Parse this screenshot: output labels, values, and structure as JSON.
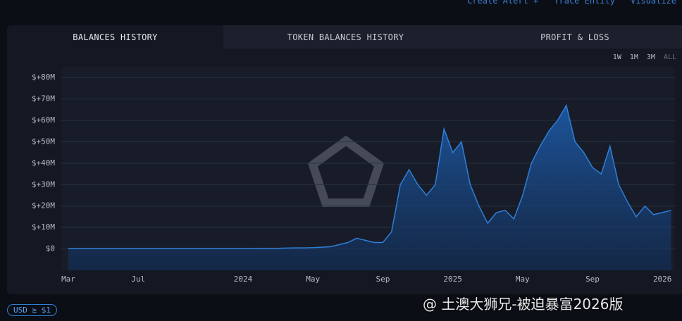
{
  "top_actions": [
    "Create Alert +",
    "Trace Entity",
    "Visualize"
  ],
  "tabs": [
    "BALANCES HISTORY",
    "TOKEN BALANCES HISTORY",
    "PROFIT & LOSS"
  ],
  "ranges": [
    "1W",
    "1M",
    "3M",
    "ALL"
  ],
  "filter": "USD ≥ $1",
  "watermark": "@ 土澳大狮兄-被迫暴富2026版",
  "chart_data": {
    "type": "area",
    "color": "#2f7fd8",
    "grid": true,
    "categories": [
      "Mar",
      null,
      null,
      null,
      null,
      null,
      null,
      null,
      "Jul",
      null,
      null,
      null,
      null,
      null,
      null,
      null,
      null,
      null,
      null,
      null,
      "2024",
      null,
      null,
      null,
      null,
      null,
      null,
      null,
      "May",
      null,
      null,
      null,
      null,
      null,
      null,
      null,
      "Sep",
      null,
      null,
      null,
      null,
      null,
      null,
      null,
      "2025",
      null,
      null,
      null,
      null,
      null,
      null,
      null,
      "May",
      null,
      null,
      null,
      null,
      null,
      null,
      null,
      "Sep",
      null,
      null,
      null,
      null,
      null,
      null,
      null,
      "2026",
      null
    ],
    "values": [
      200000,
      200000,
      200000,
      200000,
      200000,
      200000,
      200000,
      200000,
      200000,
      200000,
      200000,
      200000,
      200000,
      200000,
      200000,
      200000,
      200000,
      200000,
      200000,
      200000,
      200000,
      200000,
      300000,
      300000,
      300000,
      400000,
      500000,
      500000,
      600000,
      800000,
      1000000,
      2000000,
      3000000,
      5000000,
      4000000,
      3000000,
      3000000,
      8000000,
      30000000,
      37000000,
      30000000,
      25000000,
      30000000,
      56000000,
      45000000,
      50000000,
      30000000,
      20000000,
      12000000,
      17000000,
      18000000,
      14000000,
      25000000,
      40000000,
      48000000,
      55000000,
      60000000,
      67000000,
      50000000,
      45000000,
      38000000,
      35000000,
      48000000,
      30000000,
      22000000,
      15000000,
      20000000,
      16000000,
      17000000,
      18000000
    ],
    "ylim": [
      -10000000,
      85000000
    ],
    "yticks": [
      {
        "value": 0,
        "label": "$0"
      },
      {
        "value": 10000000,
        "label": "$+10M"
      },
      {
        "value": 20000000,
        "label": "$+20M"
      },
      {
        "value": 30000000,
        "label": "$+30M"
      },
      {
        "value": 40000000,
        "label": "$+40M"
      },
      {
        "value": 50000000,
        "label": "$+50M"
      },
      {
        "value": 60000000,
        "label": "$+60M"
      },
      {
        "value": 70000000,
        "label": "$+70M"
      },
      {
        "value": 80000000,
        "label": "$+80M"
      }
    ]
  }
}
